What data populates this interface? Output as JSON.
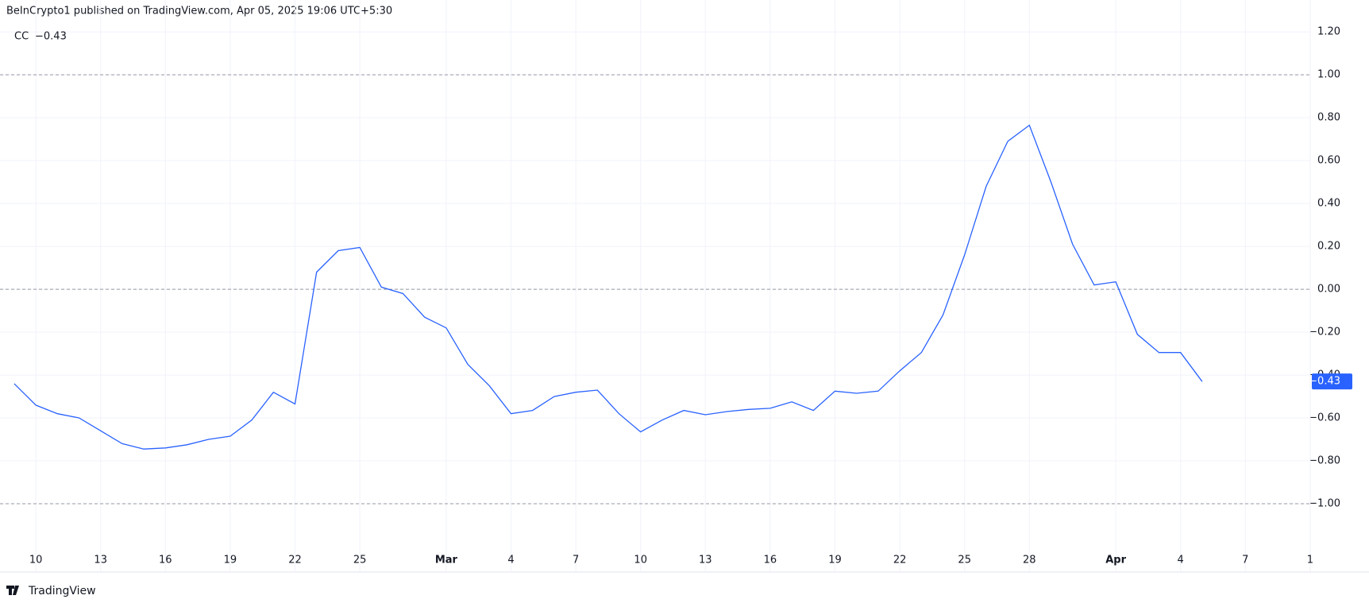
{
  "chart_data": {
    "type": "line",
    "header": "BeInCrypto1 published on TradingView.com, Apr 05, 2025 19:06 UTC+5:30",
    "footer": "TradingView",
    "legend_value": "−0.43",
    "categories": [
      null,
      "10",
      null,
      null,
      "13",
      null,
      null,
      "16",
      null,
      null,
      "19",
      null,
      null,
      "22",
      null,
      null,
      "25",
      null,
      null,
      null,
      "Mar",
      null,
      null,
      "4",
      null,
      null,
      "7",
      null,
      null,
      "10",
      null,
      null,
      "13",
      null,
      null,
      "16",
      null,
      null,
      "19",
      null,
      null,
      "22",
      null,
      null,
      "25",
      null,
      null,
      "28",
      null,
      null,
      null,
      "Apr",
      null,
      null,
      "4",
      null,
      null,
      "7",
      null,
      null,
      "1"
    ],
    "series": [
      {
        "name": "CC",
        "color": "#2962ff",
        "values": [
          -0.44,
          -0.54,
          -0.58,
          -0.6,
          -0.66,
          -0.72,
          -0.745,
          -0.74,
          -0.725,
          -0.7,
          -0.685,
          -0.61,
          -0.48,
          -0.535,
          0.08,
          0.18,
          0.195,
          0.01,
          -0.02,
          -0.13,
          -0.18,
          -0.35,
          -0.45,
          -0.58,
          -0.565,
          -0.5,
          -0.48,
          -0.47,
          -0.58,
          -0.665,
          -0.61,
          -0.565,
          -0.585,
          -0.57,
          -0.56,
          -0.555,
          -0.525,
          -0.565,
          -0.475,
          -0.485,
          -0.475,
          -0.38,
          -0.295,
          -0.12,
          0.16,
          0.48,
          0.69,
          0.765,
          0.5,
          0.21,
          0.02,
          0.035,
          -0.21,
          -0.295,
          -0.295,
          -0.43,
          null,
          null,
          null,
          null,
          null
        ]
      }
    ],
    "ylim": [
      -1.2,
      1.26
    ],
    "yticks": [
      {
        "value": 1.2,
        "label": "1.20"
      },
      {
        "value": 1.0,
        "label": "1.00"
      },
      {
        "value": 0.8,
        "label": "0.80"
      },
      {
        "value": 0.6,
        "label": "0.60"
      },
      {
        "value": 0.4,
        "label": "0.40"
      },
      {
        "value": 0.2,
        "label": "0.20"
      },
      {
        "value": 0,
        "label": "0.00"
      },
      {
        "value": -0.2,
        "label": "−0.20"
      },
      {
        "value": -0.4,
        "label": "−0.40"
      },
      {
        "value": -0.6,
        "label": "−0.60"
      },
      {
        "value": -0.8,
        "label": "−0.80"
      },
      {
        "value": -1.0,
        "label": "−1.00"
      }
    ],
    "levels": [
      1,
      0,
      -1
    ],
    "grid": true
  }
}
